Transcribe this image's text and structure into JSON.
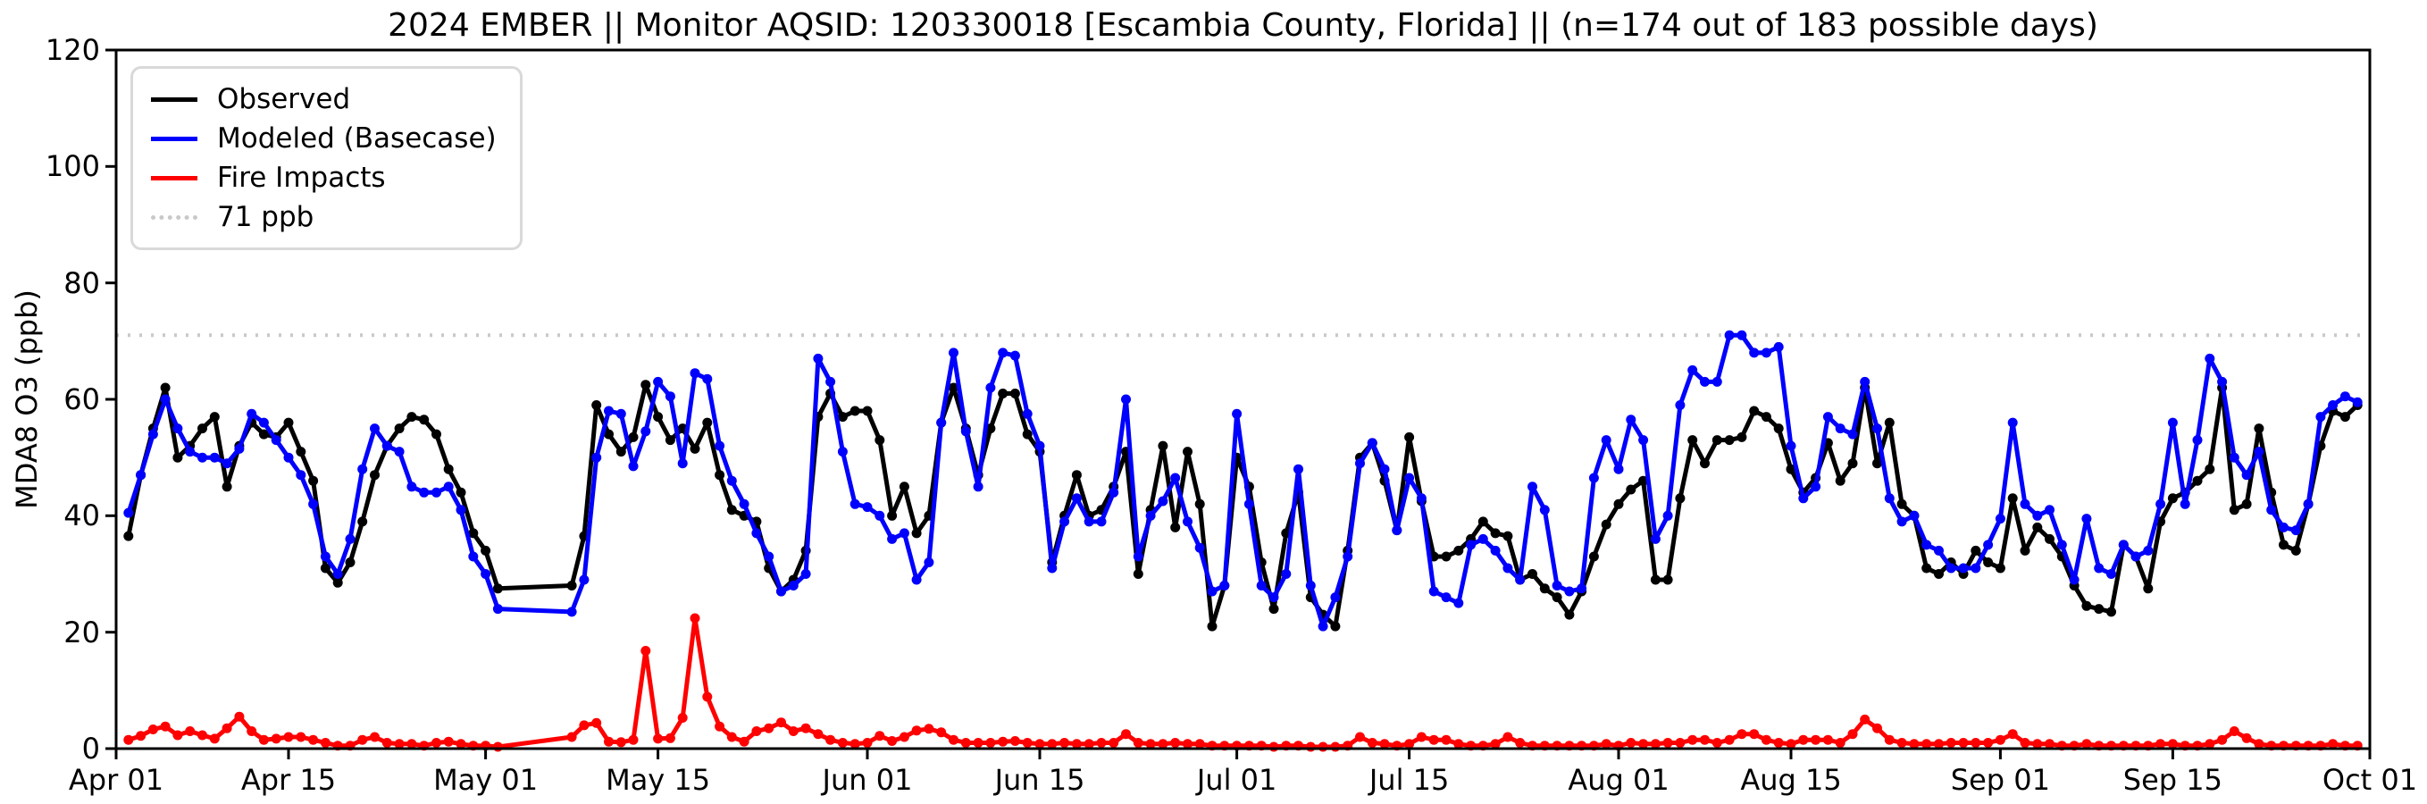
{
  "figure": {
    "title": "2024 EMBER || Monitor AQSID: 120330018 [Escambia County, Florida] || (n=174 out of 183 possible days)",
    "y_axis_label": "MDA8 O3 (ppb)"
  },
  "chart_data": {
    "type": "line",
    "title": "2024 EMBER || Monitor AQSID: 120330018 [Escambia County, Florida] || (n=174 out of 183 possible days)",
    "xlabel": "",
    "ylabel": "MDA8 O3 (ppb)",
    "ylim": [
      0,
      120
    ],
    "y_ticks": [
      0,
      20,
      40,
      60,
      80,
      100,
      120
    ],
    "grid": "off",
    "legend_position": "upper-left",
    "x_start_date": "Apr 01",
    "x_end_date": "Oct 01",
    "n_days": 183,
    "x_ticks": [
      {
        "day": 1,
        "label": "Apr 01"
      },
      {
        "day": 15,
        "label": "Apr 15"
      },
      {
        "day": 31,
        "label": "May 01"
      },
      {
        "day": 45,
        "label": "May 15"
      },
      {
        "day": 62,
        "label": "Jun 01"
      },
      {
        "day": 76,
        "label": "Jun 15"
      },
      {
        "day": 92,
        "label": "Jul 01"
      },
      {
        "day": 106,
        "label": "Jul 15"
      },
      {
        "day": 123,
        "label": "Aug 01"
      },
      {
        "day": 137,
        "label": "Aug 15"
      },
      {
        "day": 154,
        "label": "Sep 01"
      },
      {
        "day": 168,
        "label": "Sep 15"
      },
      {
        "day": 184,
        "label": "Oct 01"
      }
    ],
    "threshold": {
      "value": 71,
      "label": "71 ppb",
      "color": "#c9c9c9",
      "style": "dotted"
    },
    "legend": [
      {
        "label": "Observed",
        "color": "#000000",
        "style": "solid"
      },
      {
        "label": "Modeled (Basecase)",
        "color": "#0000ff",
        "style": "solid"
      },
      {
        "label": "Fire Impacts",
        "color": "#ff0000",
        "style": "solid"
      },
      {
        "label": "71 ppb",
        "color": "#c9c9c9",
        "style": "dotted"
      }
    ],
    "series": [
      {
        "name": "Observed",
        "color": "#000000",
        "values": [
          null,
          36.5,
          47,
          55,
          62,
          50,
          52,
          55,
          57,
          45,
          52,
          56,
          54,
          53.5,
          56,
          51,
          46,
          31,
          28.5,
          32,
          39,
          47,
          52,
          55,
          57,
          56.5,
          54,
          48,
          44,
          37,
          34,
          27.5,
          null,
          null,
          null,
          null,
          null,
          28,
          36.5,
          59,
          54,
          51,
          53.5,
          62.5,
          57,
          53,
          55,
          51.5,
          56,
          47,
          41,
          40,
          39,
          31,
          27,
          29,
          34,
          57,
          61,
          57,
          58,
          58,
          53,
          40,
          45,
          37,
          40,
          56,
          62,
          55,
          47,
          55,
          61,
          61,
          54,
          51,
          32,
          40,
          47,
          40,
          41,
          45,
          51,
          30,
          41,
          52,
          38,
          51,
          42,
          21,
          28,
          50,
          45,
          32,
          24,
          37,
          44,
          26,
          23,
          21,
          34,
          50,
          52.5,
          46,
          37.5,
          53.5,
          42.5,
          33,
          33,
          34,
          36,
          39,
          37,
          36.5,
          29,
          30,
          27.5,
          26,
          23,
          27,
          33,
          38.5,
          42,
          44.5,
          46,
          29,
          29,
          43,
          53,
          49,
          53,
          53,
          53.5,
          58,
          57,
          55,
          48,
          44,
          46.5,
          52.5,
          46,
          49,
          62,
          49,
          56,
          42,
          40,
          31,
          30,
          32,
          30,
          34,
          32,
          31,
          43,
          34,
          38,
          36,
          33,
          28,
          24.5,
          24,
          23.5,
          35,
          33,
          27.5,
          39,
          43,
          44,
          46,
          48,
          62,
          41,
          42,
          55,
          44,
          35,
          34,
          42,
          52,
          58,
          57,
          59
        ]
      },
      {
        "name": "Modeled (Basecase)",
        "color": "#0000ff",
        "values": [
          null,
          40.5,
          47,
          54,
          60,
          55,
          51,
          50,
          50,
          49,
          51.5,
          57.5,
          56,
          53,
          50,
          47,
          42,
          33,
          30,
          36,
          48,
          55,
          52,
          51,
          45,
          44,
          44,
          45,
          41,
          33,
          30,
          24,
          null,
          null,
          null,
          null,
          null,
          23.5,
          29,
          50,
          58,
          57.5,
          48.5,
          54.5,
          63,
          60.5,
          49,
          64.5,
          63.5,
          52,
          46,
          42,
          37,
          33,
          27,
          28,
          30,
          67,
          63,
          51,
          42,
          41.5,
          40,
          36,
          37,
          29,
          32,
          56,
          68,
          54.5,
          45,
          62,
          68,
          67.5,
          57.5,
          52,
          31,
          39,
          43,
          39,
          39,
          44,
          60,
          33,
          40,
          42.5,
          46.5,
          39,
          34.5,
          27,
          28,
          57.5,
          42,
          28,
          26,
          30,
          48,
          28,
          21,
          26,
          33,
          49,
          52.5,
          48,
          37.5,
          46.5,
          43,
          27,
          26,
          25,
          35,
          36,
          34,
          31,
          29,
          45,
          41,
          28,
          27,
          27.5,
          46.5,
          53,
          48,
          56.5,
          53,
          36,
          40,
          59,
          65,
          63,
          63,
          71,
          71,
          68,
          68,
          69,
          52,
          43,
          45,
          57,
          55,
          54,
          63,
          55,
          43,
          39,
          40,
          35,
          34,
          31,
          31,
          31,
          35,
          39.5,
          56,
          42,
          40,
          41,
          35,
          29,
          39.5,
          31,
          30,
          35,
          33,
          34,
          42,
          56,
          42,
          53,
          67,
          63,
          50,
          47,
          51,
          41,
          38,
          37.5,
          42,
          57,
          59,
          60.5,
          59.5
        ]
      },
      {
        "name": "Fire Impacts",
        "color": "#ff0000",
        "values": [
          null,
          1.5,
          2.2,
          3.3,
          3.8,
          2.3,
          3,
          2.3,
          1.7,
          3.5,
          5.5,
          3,
          1.5,
          1.7,
          2,
          2,
          1.5,
          1,
          0.5,
          0.5,
          1.5,
          2,
          1,
          0.8,
          0.8,
          0.5,
          1,
          1.2,
          0.8,
          0.5,
          0.5,
          0.3,
          null,
          null,
          null,
          null,
          null,
          2,
          4,
          4.4,
          1.2,
          1.1,
          1.5,
          16.8,
          1.7,
          1.8,
          5.3,
          22.4,
          8.9,
          3.8,
          2,
          1.2,
          3,
          3.5,
          4.5,
          3,
          3.5,
          2.5,
          1.5,
          1,
          0.8,
          1,
          2.2,
          1.3,
          2,
          3.1,
          3.4,
          2.8,
          1.5,
          1,
          1,
          1,
          1.2,
          1.3,
          1,
          0.8,
          0.8,
          1,
          0.8,
          0.8,
          1,
          1,
          2.5,
          1,
          0.8,
          0.8,
          1,
          0.8,
          0.8,
          0.5,
          0.5,
          0.5,
          0.5,
          0.5,
          0.3,
          0.5,
          0.5,
          0.3,
          0.3,
          0.3,
          0.5,
          2,
          1,
          0.8,
          0.5,
          0.8,
          2,
          1.5,
          1.5,
          0.8,
          0.5,
          0.5,
          0.8,
          2,
          1,
          0.5,
          0.5,
          0.5,
          0.5,
          0.5,
          0.5,
          0.8,
          0.5,
          1,
          0.8,
          0.8,
          1,
          1,
          1.5,
          1.5,
          1,
          1.5,
          2.5,
          2.5,
          1.5,
          1,
          0.8,
          1.5,
          1.5,
          1.5,
          1,
          2.5,
          5,
          3.5,
          1.5,
          1,
          0.8,
          0.8,
          0.8,
          1,
          1,
          1,
          1,
          1.5,
          2.5,
          1,
          0.8,
          0.8,
          0.5,
          0.5,
          0.8,
          0.5,
          0.5,
          0.5,
          0.5,
          0.5,
          0.8,
          0.8,
          0.5,
          0.5,
          0.8,
          1.5,
          3,
          1.8,
          0.8,
          0.5,
          0.5,
          0.5,
          0.5,
          0.5,
          0.8,
          0.5,
          0.5
        ]
      }
    ]
  }
}
